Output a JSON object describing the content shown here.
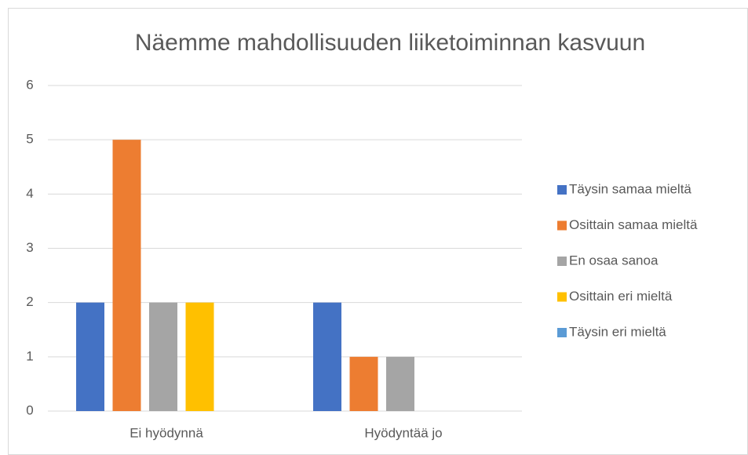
{
  "chart_data": {
    "type": "bar",
    "title": "Näemme mahdollisuuden liiketoiminnan kasvuun",
    "categories": [
      "Ei hyödynnä",
      "Hyödyntää jo"
    ],
    "series": [
      {
        "name": "Täysin samaa mieltä",
        "color": "#4472c4",
        "values": [
          2,
          2
        ]
      },
      {
        "name": "Osittain samaa mieltä",
        "color": "#ed7d31",
        "values": [
          5,
          1
        ]
      },
      {
        "name": "En osaa sanoa",
        "color": "#a5a5a5",
        "values": [
          2,
          1
        ]
      },
      {
        "name": "Osittain eri mieltä",
        "color": "#ffc000",
        "values": [
          2,
          0
        ]
      },
      {
        "name": "Täysin eri mieltä",
        "color": "#5b9bd5",
        "values": [
          0,
          0
        ]
      }
    ],
    "ylim": [
      0,
      6
    ],
    "yticks": [
      0,
      1,
      2,
      3,
      4,
      5,
      6
    ],
    "grid": true,
    "legend": "right"
  }
}
